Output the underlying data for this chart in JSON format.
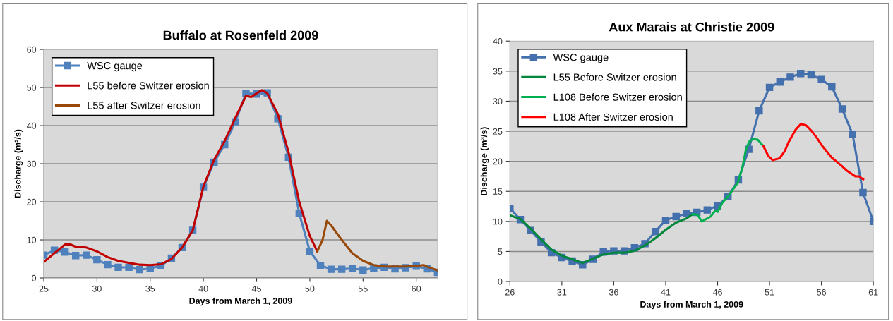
{
  "chart_data": [
    {
      "type": "line",
      "title": "Buffalo at Rosenfeld 2009",
      "xlabel": "Days from March 1, 2009",
      "ylabel": "Discharge (m³/s)",
      "xlim": [
        25,
        62
      ],
      "xticks": [
        25,
        30,
        35,
        40,
        45,
        50,
        55,
        60
      ],
      "ylim": [
        0,
        60
      ],
      "yticks": [
        0,
        10,
        20,
        30,
        40,
        50,
        60
      ],
      "grid": "y",
      "legend": "top left",
      "series": [
        {
          "name": "WSC gauge",
          "color": "#4f81bd",
          "marker": "square",
          "x": [
            25,
            26,
            27,
            28,
            29,
            30,
            31,
            32,
            33,
            34,
            35,
            36,
            37,
            38,
            39,
            40,
            41,
            42,
            43,
            44,
            45,
            46,
            47,
            48,
            49,
            50,
            51,
            52,
            53,
            54,
            55,
            56,
            57,
            58,
            59,
            60,
            61,
            62
          ],
          "values": [
            6,
            7.3,
            6.8,
            5.9,
            6,
            4.8,
            3.5,
            2.8,
            2.8,
            2.2,
            2.5,
            3.2,
            5.2,
            8,
            12.5,
            23.8,
            30.4,
            35,
            41,
            48.5,
            48.3,
            48.6,
            41.8,
            31.7,
            17,
            7,
            3.3,
            2.3,
            2.3,
            2.5,
            2.1,
            2.6,
            2.8,
            2.4,
            2.7,
            3.1,
            2.4,
            1.5
          ]
        },
        {
          "name": "L55 before Switzer erosion",
          "color": "#c00000",
          "x": [
            25,
            26,
            27,
            27.5,
            28,
            29,
            30,
            31,
            32,
            33,
            34,
            35,
            36,
            37,
            38,
            39,
            40,
            41,
            42,
            43,
            44,
            44.5,
            45,
            45.5,
            46,
            47,
            48,
            49,
            50,
            50.7
          ],
          "values": [
            4.2,
            6.5,
            8.8,
            8.8,
            8.2,
            8,
            7,
            5.5,
            4.5,
            4,
            3.5,
            3.4,
            3.6,
            5,
            8,
            12.5,
            24,
            31,
            36,
            42,
            47.8,
            47.5,
            48.5,
            49.3,
            48.5,
            43,
            33,
            20,
            11,
            7
          ]
        },
        {
          "name": "L55 after Switzer erosion",
          "color": "#984807",
          "x": [
            50.7,
            51.2,
            51.6,
            52,
            53,
            54,
            55,
            56,
            57,
            58,
            59,
            60,
            60.7,
            61,
            62
          ],
          "values": [
            7,
            10,
            15,
            13.8,
            10,
            6.5,
            4.5,
            3.4,
            3,
            3,
            3,
            3.2,
            3.4,
            3,
            2
          ]
        }
      ]
    },
    {
      "type": "line",
      "title": "Aux Marais at Christie 2009",
      "xlabel": "Days from March 1, 2009",
      "ylabel": "Discharge (m³/s)",
      "xlim": [
        26,
        61
      ],
      "xticks": [
        26,
        31,
        36,
        41,
        46,
        51,
        56,
        61
      ],
      "ylim": [
        0,
        40
      ],
      "yticks": [
        0,
        5,
        10,
        15,
        20,
        25,
        30,
        35,
        40
      ],
      "grid": "y",
      "legend": "top left",
      "series": [
        {
          "name": "WSC gauge",
          "color": "#4470ad",
          "marker": "square",
          "x": [
            26,
            27,
            28,
            29,
            30,
            31,
            32,
            33,
            34,
            35,
            36,
            37,
            38,
            39,
            40,
            41,
            42,
            43,
            44,
            45,
            46,
            47,
            48,
            49,
            50,
            51,
            52,
            53,
            54,
            55,
            56,
            57,
            58,
            59,
            60,
            61
          ],
          "values": [
            12.2,
            10.3,
            8.5,
            6.6,
            4.8,
            4,
            3.4,
            2.8,
            3.7,
            4.9,
            5.1,
            5.1,
            5.6,
            6.3,
            8.3,
            10.2,
            10.8,
            11.3,
            11.5,
            11.9,
            12.6,
            14.1,
            16.9,
            22,
            28.4,
            32.3,
            33.2,
            34,
            34.6,
            34.4,
            33.6,
            32.4,
            28.7,
            24.5,
            14.8,
            10
          ]
        },
        {
          "name": "L55 Before Switzer erosion",
          "color": "#00873c",
          "x": [
            26,
            27,
            28,
            29,
            30,
            31,
            32,
            33,
            34,
            35,
            36,
            37,
            38,
            39,
            40,
            41,
            42,
            43,
            43.6
          ],
          "values": [
            11,
            10.4,
            8.8,
            7,
            5.3,
            4.3,
            3.7,
            3.1,
            3.8,
            4.5,
            4.8,
            4.8,
            5.1,
            6,
            7.2,
            8.6,
            9.8,
            10.5,
            11.2
          ]
        },
        {
          "name": "L108 Before Switzer erosion",
          "color": "#00b050",
          "x": [
            43.6,
            44.07,
            44.48,
            45.32,
            45.77,
            46,
            46.45,
            47.02,
            47.93,
            48.38,
            48.72,
            49.06,
            49.4,
            49.86,
            50.42
          ],
          "values": [
            11.2,
            11.1,
            10,
            10.8,
            11.8,
            11.6,
            13.1,
            14.2,
            16.4,
            18.9,
            21.9,
            23.3,
            23.7,
            23.6,
            22.5
          ]
        },
        {
          "name": "L108 After Switzer erosion",
          "color": "#ff0000",
          "x": [
            50.42,
            50.88,
            51.29,
            51.97,
            52.47,
            52.81,
            53.49,
            54.01,
            54.51,
            55.08,
            55.64,
            56.1,
            57,
            57.91,
            58.48,
            59.27,
            59.61,
            60.02
          ],
          "values": [
            22.5,
            20.9,
            20.2,
            20.5,
            21.7,
            23.1,
            25.2,
            26.2,
            26,
            25,
            23.7,
            22.5,
            20.6,
            19.3,
            18.4,
            17.5,
            17.5,
            17
          ]
        }
      ]
    }
  ]
}
